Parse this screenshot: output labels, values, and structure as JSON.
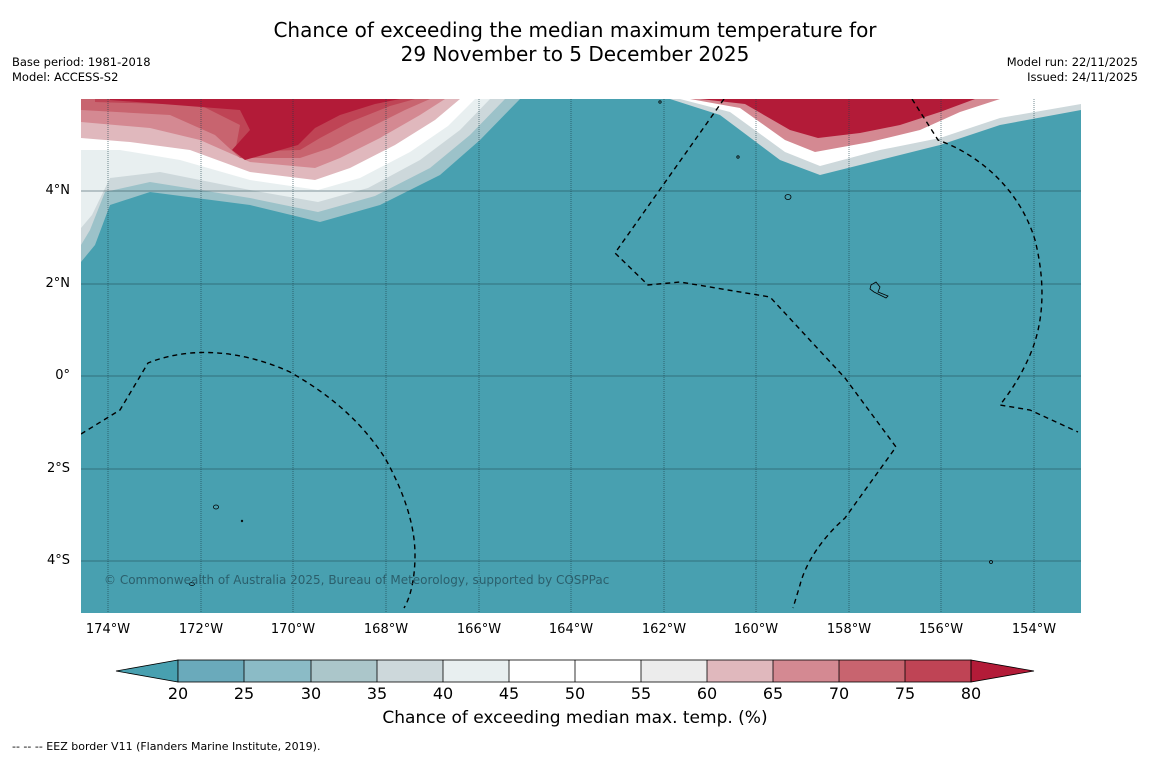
{
  "title_line1": "Chance of exceeding the median maximum temperature for",
  "title_line2": "29 November to 5 December 2025",
  "meta_left": {
    "base_period": "Base period: 1981-2018",
    "model": "Model: ACCESS-S2"
  },
  "meta_right": {
    "model_run": "Model run: 22/11/2025",
    "issued": "Issued: 24/11/2025"
  },
  "latitude_labels": [
    "4°N",
    "2°N",
    "0°",
    "2°S",
    "4°S"
  ],
  "longitude_labels": [
    "174°W",
    "172°W",
    "170°W",
    "168°W",
    "166°W",
    "164°W",
    "162°W",
    "160°W",
    "158°W",
    "156°W",
    "154°W"
  ],
  "copyright": "© Commonwealth of Australia 2025, Bureau of Meteorology, supported by COSPPac",
  "colorbar": {
    "ticks": [
      "20",
      "25",
      "30",
      "35",
      "40",
      "45",
      "50",
      "55",
      "60",
      "65",
      "70",
      "75",
      "80"
    ],
    "colors": [
      "#48a0b0",
      "#6aaabb",
      "#8bbbc6",
      "#abc6ca",
      "#cdd8db",
      "#e8eff0",
      "#ffffff",
      "#ffffff",
      "#ececec",
      "#e0b8bd",
      "#d48992",
      "#c8646f",
      "#bf4455",
      "#b31b38"
    ],
    "label": "Chance of exceeding median max. temp. (%)"
  },
  "footnote": "--  --  -- EEZ border V11 (Flanders Marine Institute, 2019).",
  "colors": {
    "ocean": "#48a0b0",
    "warm": "#b31b38"
  }
}
